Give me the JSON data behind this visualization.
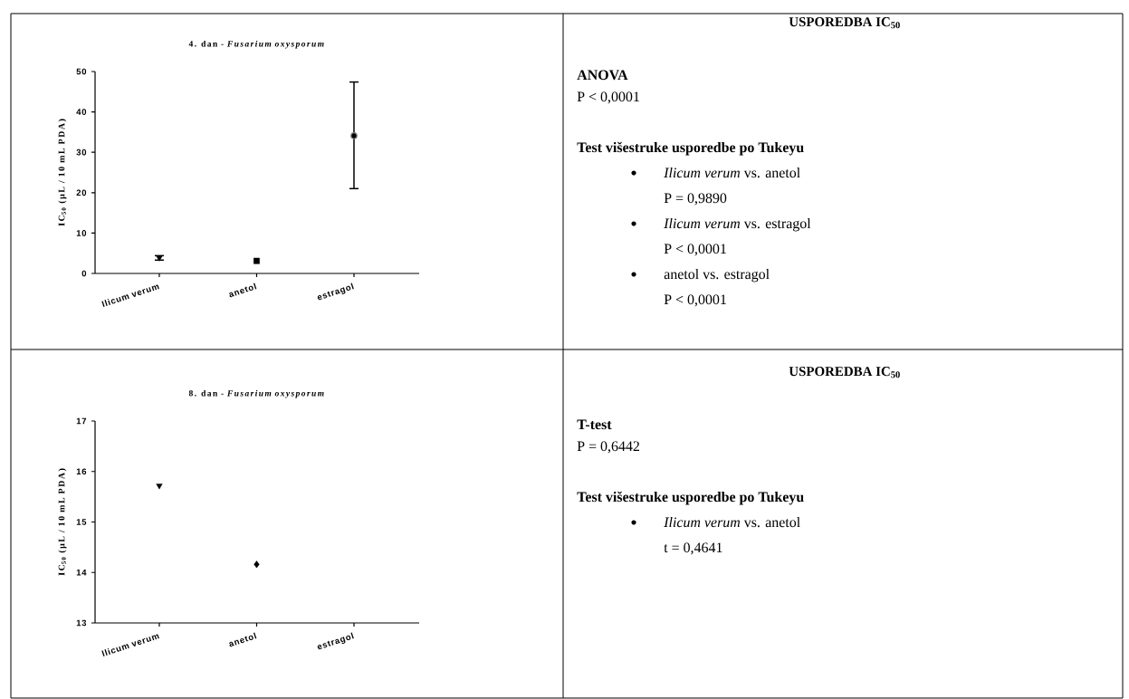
{
  "chart_data": [
    {
      "type": "scatter",
      "title": "4. dan - *Fusarium oxysporum*",
      "ylabel": "IC$_{50}$ (µL / 10 mL PDA)",
      "categories": [
        "Ilicum verum",
        "anetol",
        "estragol"
      ],
      "ylim": [
        0,
        50
      ],
      "yticks": [
        0,
        10,
        20,
        30,
        40,
        50
      ],
      "series": [
        {
          "color": "#000000",
          "marker": "triangle",
          "values": [
            3.9,
            null,
            null
          ],
          "errors": [
            [
              3.3,
              4.4
            ],
            null,
            null
          ]
        },
        {
          "color": "#000000",
          "marker": "square",
          "values": [
            null,
            3.1,
            null
          ]
        },
        {
          "color": "#000000",
          "marker": "circle",
          "values": [
            null,
            null,
            34.1
          ],
          "errors": [
            null,
            null,
            [
              21.0,
              47.4
            ]
          ]
        }
      ]
    },
    {
      "type": "other",
      "title": "USPOREDBA IC$_{50}$",
      "annotations": [
        "**ANOVA**",
        "P < 0,0001",
        "**Test višestruke usporedbe po Tukeyu**",
        "*Ilicum verum* vs. anetol",
        "P = 0,9890",
        "*Ilicum verum* vs. estragol",
        "P < 0,0001",
        "anetol vs. estragol",
        "P < 0,0001"
      ]
    },
    {
      "type": "scatter",
      "title": "8. dan - *Fusarium oxysporum*",
      "ylabel": "IC$_{50}$ (µL / 10 mL PDA)",
      "categories": [
        "Ilicum verum",
        "anetol",
        "estragol"
      ],
      "ylim": [
        13,
        17
      ],
      "yticks": [
        13,
        14,
        15,
        16,
        17
      ],
      "series": [
        {
          "color": "#000000",
          "marker": "triangle",
          "values": [
            15.72,
            null,
            null
          ]
        },
        {
          "color": "#000000",
          "marker": "diamond",
          "values": [
            null,
            14.16,
            null
          ]
        }
      ]
    },
    {
      "type": "other",
      "title": "USPOREDBA IC$_{50}$",
      "annotations": [
        "**T-test**",
        "P = 0,6442",
        "**Test višestruke usporedbe po Tukeyu**",
        "*Ilicum verum* vs. anetol",
        "t = 0,4641"
      ]
    }
  ]
}
